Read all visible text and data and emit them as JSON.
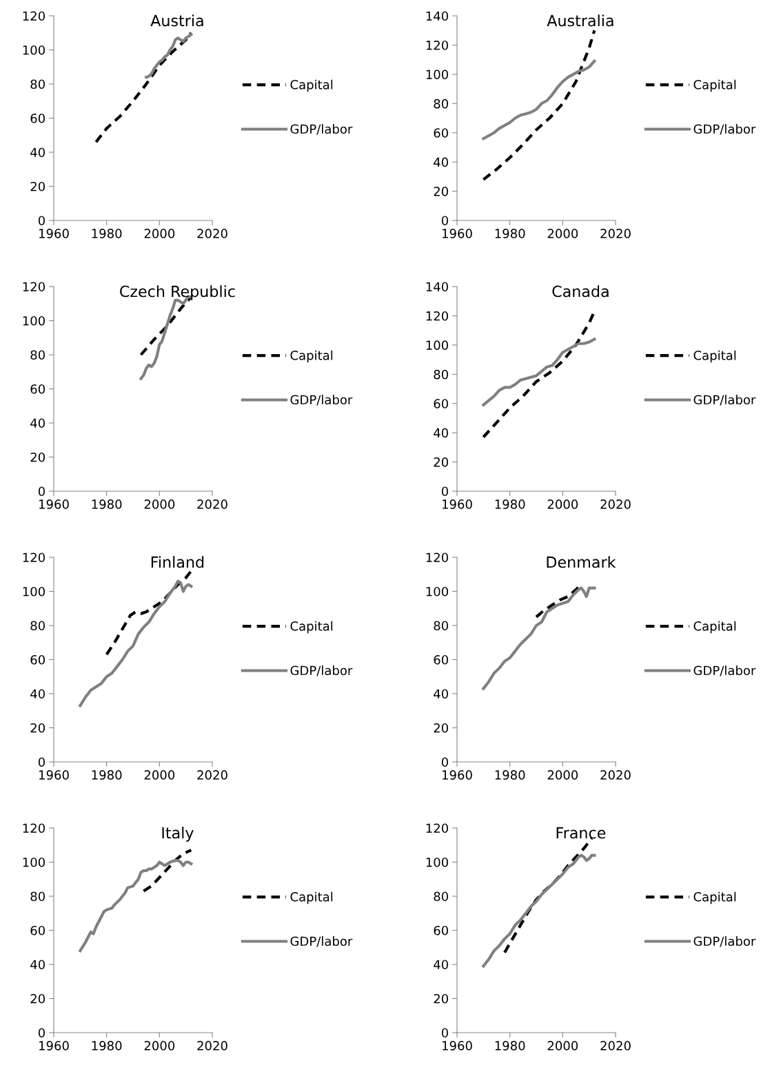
{
  "chart_data": [
    {
      "type": "line",
      "title": "Austria",
      "xlim": [
        1960,
        2020
      ],
      "xticks": [
        1960,
        1980,
        2000,
        2020
      ],
      "ylim": [
        0,
        120
      ],
      "yticks": [
        0,
        20,
        40,
        60,
        80,
        100,
        120
      ],
      "grid": false,
      "legend": "right",
      "series": [
        {
          "name": "Capital",
          "color": "#000000",
          "line_style": "dashed",
          "x": [
            1976,
            1980,
            1985,
            1990,
            1995,
            2000,
            2005,
            2010,
            2012
          ],
          "values": [
            46,
            54,
            61,
            70,
            80,
            91,
            99,
            106,
            110
          ]
        },
        {
          "name": "GDP/labor",
          "color": "#808080",
          "line_style": "solid",
          "x": [
            1995,
            1996,
            1997,
            1998,
            1999,
            2000,
            2001,
            2002,
            2003,
            2004,
            2005,
            2006,
            2007,
            2008,
            2009,
            2010,
            2011,
            2012
          ],
          "values": [
            84,
            84.5,
            86,
            89,
            91,
            93,
            94,
            96,
            97,
            100,
            102,
            106,
            107,
            106,
            105,
            107,
            108,
            109
          ]
        }
      ]
    },
    {
      "type": "line",
      "title": "Australia",
      "xlim": [
        1960,
        2020
      ],
      "xticks": [
        1960,
        1980,
        2000,
        2020
      ],
      "ylim": [
        0,
        140
      ],
      "yticks": [
        0,
        20,
        40,
        60,
        80,
        100,
        120,
        140
      ],
      "grid": false,
      "legend": "right",
      "series": [
        {
          "name": "Capital",
          "color": "#000000",
          "line_style": "dashed",
          "x": [
            1970,
            1975,
            1980,
            1985,
            1990,
            1995,
            2000,
            2005,
            2010,
            2012
          ],
          "values": [
            28,
            35,
            43,
            52,
            62,
            70,
            80,
            95,
            118,
            130
          ]
        },
        {
          "name": "GDP/labor",
          "color": "#808080",
          "line_style": "solid",
          "x": [
            1970,
            1972,
            1974,
            1976,
            1978,
            1980,
            1982,
            1984,
            1986,
            1988,
            1990,
            1992,
            1994,
            1996,
            1998,
            2000,
            2002,
            2004,
            2006,
            2008,
            2010,
            2012
          ],
          "values": [
            56,
            58,
            60,
            63,
            65,
            67,
            70,
            72,
            73,
            74,
            76,
            80,
            82,
            86,
            91,
            95,
            98,
            100,
            102,
            103,
            105,
            109
          ]
        }
      ]
    },
    {
      "type": "line",
      "title": "Czech Republic",
      "xlim": [
        1960,
        2020
      ],
      "xticks": [
        1960,
        1980,
        2000,
        2020
      ],
      "ylim": [
        0,
        120
      ],
      "yticks": [
        0,
        20,
        40,
        60,
        80,
        100,
        120
      ],
      "grid": false,
      "legend": "right",
      "series": [
        {
          "name": "Capital",
          "color": "#000000",
          "line_style": "dashed",
          "x": [
            1993,
            1998,
            2003,
            2008,
            2012
          ],
          "values": [
            80,
            89,
            97,
            107,
            114
          ]
        },
        {
          "name": "GDP/labor",
          "color": "#808080",
          "line_style": "solid",
          "x": [
            1993,
            1994,
            1995,
            1996,
            1997,
            1998,
            1999,
            2000,
            2001,
            2002,
            2003,
            2004,
            2005,
            2006,
            2007,
            2008,
            2009,
            2010,
            2011,
            2012
          ],
          "values": [
            66,
            68,
            72,
            74,
            73,
            75,
            79,
            86,
            88,
            93,
            98,
            103,
            107,
            112,
            112,
            111,
            110,
            112,
            114,
            114
          ]
        }
      ]
    },
    {
      "type": "line",
      "title": "Canada",
      "xlim": [
        1960,
        2020
      ],
      "xticks": [
        1960,
        1980,
        2000,
        2020
      ],
      "ylim": [
        0,
        140
      ],
      "yticks": [
        0,
        20,
        40,
        60,
        80,
        100,
        120,
        140
      ],
      "grid": false,
      "legend": "right",
      "series": [
        {
          "name": "Capital",
          "color": "#000000",
          "line_style": "dashed",
          "x": [
            1970,
            1975,
            1980,
            1985,
            1990,
            1995,
            2000,
            2005,
            2010,
            2012
          ],
          "values": [
            37,
            47,
            57,
            65,
            75,
            81,
            89,
            100,
            115,
            123
          ]
        },
        {
          "name": "GDP/labor",
          "color": "#808080",
          "line_style": "solid",
          "x": [
            1970,
            1972,
            1974,
            1976,
            1978,
            1980,
            1982,
            1984,
            1986,
            1988,
            1990,
            1992,
            1994,
            1996,
            1998,
            2000,
            2002,
            2004,
            2006,
            2008,
            2010,
            2012
          ],
          "values": [
            59,
            62,
            65,
            69,
            71,
            71,
            73,
            76,
            77,
            78,
            79,
            82,
            85,
            86,
            90,
            95,
            97,
            99,
            101,
            101,
            102,
            104
          ]
        }
      ]
    },
    {
      "type": "line",
      "title": "Finland",
      "xlim": [
        1960,
        2020
      ],
      "xticks": [
        1960,
        1980,
        2000,
        2020
      ],
      "ylim": [
        0,
        120
      ],
      "yticks": [
        0,
        20,
        40,
        60,
        80,
        100,
        120
      ],
      "grid": false,
      "legend": "right",
      "series": [
        {
          "name": "Capital",
          "color": "#000000",
          "line_style": "dashed",
          "x": [
            1980,
            1983,
            1986,
            1989,
            1991,
            1993,
            1995,
            1998,
            2001,
            2004,
            2007,
            2010,
            2012
          ],
          "values": [
            63,
            70,
            78,
            86,
            88,
            87,
            88,
            91,
            94,
            99,
            104,
            108,
            112
          ]
        },
        {
          "name": "GDP/labor",
          "color": "#808080",
          "line_style": "solid",
          "x": [
            1970,
            1972,
            1974,
            1976,
            1978,
            1980,
            1982,
            1984,
            1986,
            1988,
            1990,
            1992,
            1994,
            1996,
            1998,
            2000,
            2002,
            2004,
            2006,
            2007,
            2008,
            2009,
            2010,
            2011,
            2012
          ],
          "values": [
            33,
            38,
            42,
            44,
            46,
            50,
            52,
            56,
            60,
            65,
            68,
            75,
            79,
            82,
            87,
            91,
            94,
            99,
            103,
            106,
            105,
            100,
            103,
            104,
            103
          ]
        }
      ]
    },
    {
      "type": "line",
      "title": "Denmark",
      "xlim": [
        1960,
        2020
      ],
      "xticks": [
        1960,
        1980,
        2000,
        2020
      ],
      "ylim": [
        0,
        120
      ],
      "yticks": [
        0,
        20,
        40,
        60,
        80,
        100,
        120
      ],
      "grid": false,
      "legend": "right",
      "series": [
        {
          "name": "Capital",
          "color": "#000000",
          "line_style": "dashed",
          "x": [
            1990,
            1993,
            1996,
            1999,
            2002,
            2005,
            2007
          ],
          "values": [
            85,
            89,
            92,
            95,
            97,
            101,
            104
          ]
        },
        {
          "name": "GDP/labor",
          "color": "#808080",
          "line_style": "solid",
          "x": [
            1970,
            1972,
            1974,
            1976,
            1978,
            1980,
            1982,
            1984,
            1986,
            1988,
            1990,
            1992,
            1994,
            1996,
            1998,
            2000,
            2002,
            2004,
            2006,
            2007,
            2008,
            2009,
            2010,
            2012
          ],
          "values": [
            43,
            47,
            52,
            55,
            59,
            61,
            65,
            69,
            72,
            75,
            80,
            82,
            88,
            90,
            92,
            93,
            94,
            98,
            101,
            102,
            100,
            97,
            102,
            102
          ]
        }
      ]
    },
    {
      "type": "line",
      "title": "Italy",
      "xlim": [
        1960,
        2020
      ],
      "xticks": [
        1960,
        1980,
        2000,
        2020
      ],
      "ylim": [
        0,
        120
      ],
      "yticks": [
        0,
        20,
        40,
        60,
        80,
        100,
        120
      ],
      "grid": false,
      "legend": "right",
      "series": [
        {
          "name": "Capital",
          "color": "#000000",
          "line_style": "dashed",
          "x": [
            1994,
            1997,
            2000,
            2003,
            2006,
            2009,
            2012
          ],
          "values": [
            83,
            86,
            91,
            96,
            101,
            105,
            107
          ]
        },
        {
          "name": "GDP/labor",
          "color": "#808080",
          "line_style": "solid",
          "x": [
            1970,
            1972,
            1974,
            1975,
            1976,
            1978,
            1979,
            1980,
            1982,
            1983,
            1985,
            1987,
            1988,
            1990,
            1992,
            1993,
            1994,
            1995,
            1996,
            1997,
            1998,
            1999,
            2000,
            2001,
            2002,
            2003,
            2004,
            2006,
            2007,
            2008,
            2009,
            2010,
            2011,
            2012
          ],
          "values": [
            48,
            53,
            59,
            58,
            62,
            68,
            71,
            72,
            73,
            75,
            78,
            82,
            85,
            86,
            90,
            94,
            95,
            95,
            96,
            96,
            97,
            98,
            100,
            99,
            98,
            99,
            100,
            101,
            101,
            100,
            98,
            100,
            100,
            99
          ]
        }
      ]
    },
    {
      "type": "line",
      "title": "France",
      "xlim": [
        1960,
        2020
      ],
      "xticks": [
        1960,
        1980,
        2000,
        2020
      ],
      "ylim": [
        0,
        120
      ],
      "yticks": [
        0,
        20,
        40,
        60,
        80,
        100,
        120
      ],
      "grid": false,
      "legend": "right",
      "series": [
        {
          "name": "Capital",
          "color": "#000000",
          "line_style": "dashed",
          "x": [
            1978,
            1981,
            1984,
            1987,
            1990,
            1993,
            1996,
            1999,
            2002,
            2005,
            2008,
            2011
          ],
          "values": [
            47,
            55,
            63,
            71,
            78,
            83,
            87,
            92,
            98,
            103,
            108,
            114
          ]
        },
        {
          "name": "GDP/labor",
          "color": "#808080",
          "line_style": "solid",
          "x": [
            1970,
            1972,
            1974,
            1976,
            1978,
            1980,
            1982,
            1984,
            1986,
            1988,
            1990,
            1992,
            1994,
            1996,
            1998,
            2000,
            2002,
            2004,
            2006,
            2007,
            2008,
            2009,
            2010,
            2011,
            2012
          ],
          "values": [
            39,
            43,
            48,
            51,
            55,
            58,
            63,
            66,
            70,
            74,
            77,
            81,
            84,
            87,
            90,
            93,
            97,
            99,
            103,
            104,
            103,
            101,
            102,
            104,
            104
          ]
        }
      ]
    }
  ]
}
